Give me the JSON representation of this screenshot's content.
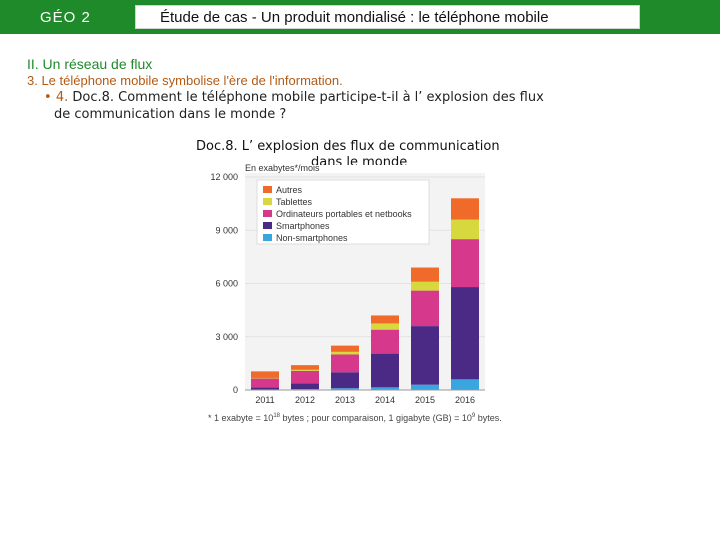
{
  "header": {
    "geo_label": "GÉO 2",
    "title": "Étude de cas  -  Un produit mondialisé : le téléphone mobile"
  },
  "content": {
    "section": "II. Un réseau de flux",
    "subsection": "3. Le téléphone mobile symbolise l'ère de l'information.",
    "question_bullet": "•",
    "question_number": "4.",
    "question_line1": "Doc.8. Comment le téléphone mobile participe-t-il à l’ explosion des flux",
    "question_line2": "de communication dans le monde ?",
    "doc_title_line1": "Doc.8. L’ explosion des flux de communication",
    "doc_title_line2": "dans le monde",
    "footnote_a": "* 1 exabyte = 10",
    "footnote_exp1": "18",
    "footnote_b": " bytes ; pour comparaison, 1 gigabyte (GB) = 10",
    "footnote_exp2": "9",
    "footnote_c": " bytes."
  },
  "chart_data": {
    "type": "bar",
    "stacked": true,
    "ylabel": "En exabytes*/mois",
    "categories": [
      "2011",
      "2012",
      "2013",
      "2014",
      "2015",
      "2016"
    ],
    "ylim": [
      0,
      12000
    ],
    "yticks": [
      "0",
      "3 000",
      "6 000",
      "9 000",
      "12 000"
    ],
    "series": [
      {
        "name": "Non-smartphones",
        "color": "#3aa6e0",
        "values": [
          30,
          50,
          100,
          150,
          300,
          600
        ]
      },
      {
        "name": "Smartphones",
        "color": "#4b2a86",
        "values": [
          120,
          330,
          900,
          1900,
          3300,
          5200
        ]
      },
      {
        "name": "Ordinateurs portables et netbooks",
        "color": "#d6388c",
        "values": [
          500,
          700,
          1000,
          1350,
          2000,
          2700
        ]
      },
      {
        "name": "Tablettes",
        "color": "#d7d83e",
        "values": [
          30,
          60,
          150,
          350,
          500,
          1100
        ]
      },
      {
        "name": "Autres",
        "color": "#f06a2a",
        "values": [
          370,
          260,
          350,
          450,
          800,
          1200
        ]
      }
    ],
    "legend_order": [
      "Autres",
      "Tablettes",
      "Ordinateurs portables et netbooks",
      "Smartphones",
      "Non-smartphones"
    ]
  }
}
